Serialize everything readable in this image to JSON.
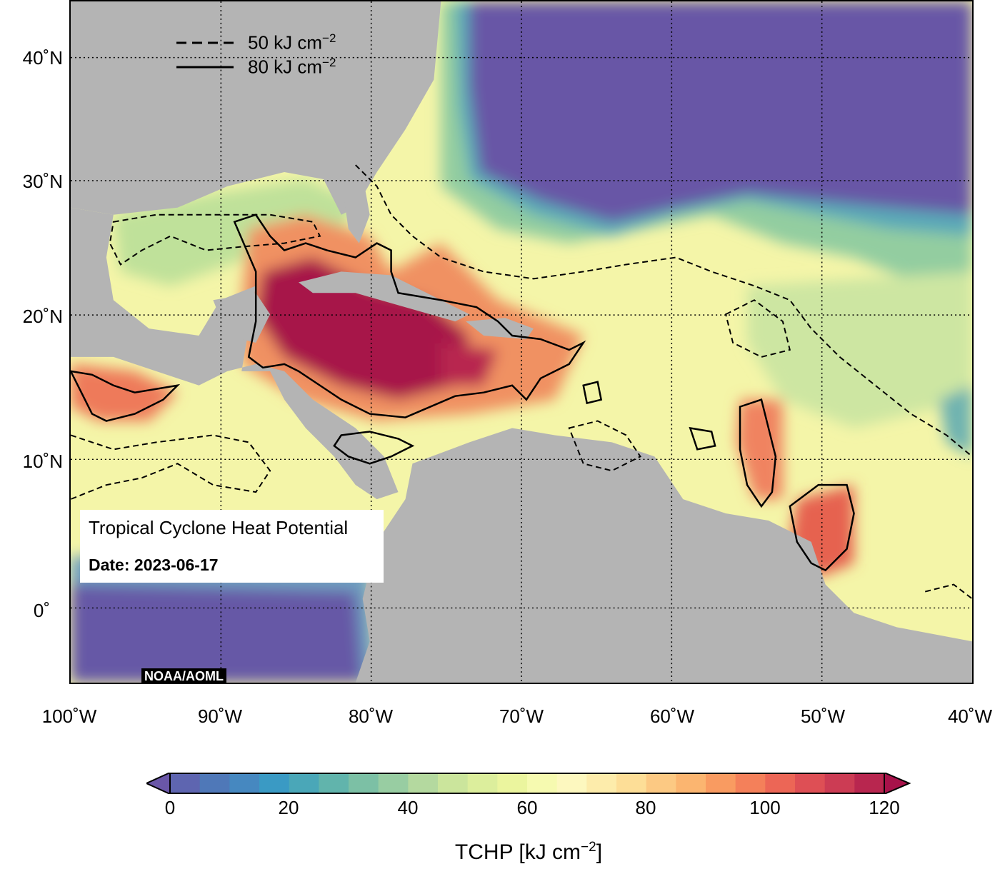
{
  "map": {
    "title": "Tropical Cyclone Heat Potential",
    "date_label": "Date: 2023-06-17",
    "credit": "NOAA/AOML",
    "lat_labels": [
      "40˚N",
      "30˚N",
      "20˚N",
      "10˚N",
      "0˚"
    ],
    "lon_labels": [
      "100˚W",
      "90˚W",
      "80˚W",
      "70˚W",
      "60˚W",
      "50˚W",
      "40˚W"
    ],
    "extent": {
      "lon_min": -100,
      "lon_max": -40,
      "lat_min": -5,
      "lat_max": 45
    },
    "colors": {
      "land": "#b4b4b4",
      "cold_water": "#6659a6",
      "hot_water": "#a7124a"
    }
  },
  "legend": {
    "dashed_label": "50 kJ cm",
    "dashed_exp": "−2",
    "solid_label": "80 kJ cm",
    "solid_exp": "−2"
  },
  "colorbar": {
    "ticks": [
      "0",
      "20",
      "40",
      "60",
      "80",
      "100",
      "120"
    ],
    "title": "TCHP [kJ cm",
    "title_exp": "−2",
    "title_close": "]",
    "colors": [
      "#6a57a8",
      "#5e65b0",
      "#4f78b8",
      "#4688c0",
      "#3a9ac4",
      "#4aa7b8",
      "#61b4ac",
      "#7cc0a5",
      "#98cda2",
      "#b4d99f",
      "#cbe59c",
      "#dcee9c",
      "#ebf59e",
      "#f6fab0",
      "#fdf8bf",
      "#fdecab",
      "#fdde97",
      "#fcc983",
      "#fbb570",
      "#f99b61",
      "#f4805a",
      "#ec6656",
      "#de4f55",
      "#cc3c54",
      "#b8264f",
      "#a7124a"
    ]
  }
}
